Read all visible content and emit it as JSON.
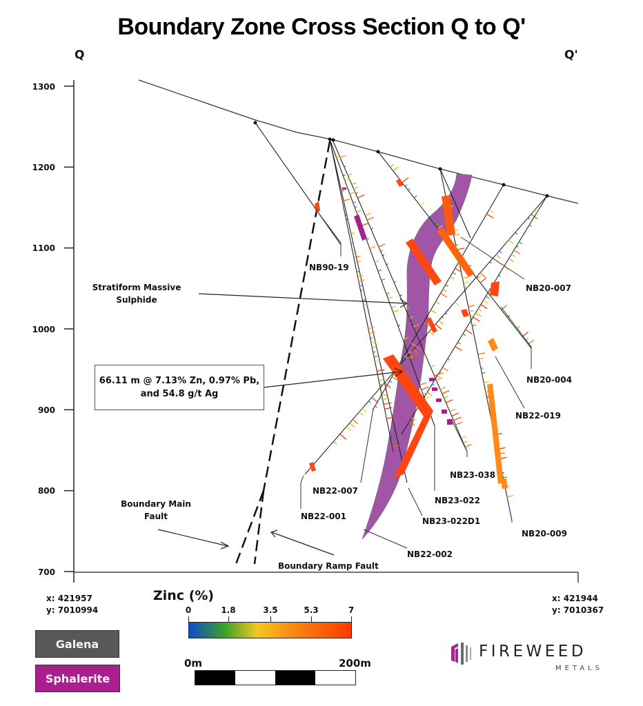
{
  "title": "Boundary Zone Cross Section Q to Q'",
  "section_ends": {
    "left": "Q",
    "right": "Q'"
  },
  "y_axis": {
    "ticks": [
      "1300",
      "1200",
      "1100",
      "1000",
      "900",
      "800",
      "700"
    ],
    "range": [
      700,
      1300
    ],
    "units": "m elevation"
  },
  "coordinates": {
    "left": {
      "x": "x: 421957",
      "y": "y: 7010994"
    },
    "right": {
      "x": "x: 421944",
      "y": "y: 7010367"
    }
  },
  "drillholes": [
    {
      "id": "NB90-19"
    },
    {
      "id": "NB20-007"
    },
    {
      "id": "NB20-004"
    },
    {
      "id": "NB22-019"
    },
    {
      "id": "NB23-038"
    },
    {
      "id": "NB22-007"
    },
    {
      "id": "NB23-022"
    },
    {
      "id": "NB22-001"
    },
    {
      "id": "NB23-022D1"
    },
    {
      "id": "NB20-009"
    },
    {
      "id": "NB22-002"
    }
  ],
  "annotations": {
    "stratiform_line1": "Stratiform Massive",
    "stratiform_line2": "Sulphide",
    "main_fault_line1": "Boundary Main",
    "main_fault_line2": "Fault",
    "ramp_fault": "Boundary Ramp Fault",
    "intercept_line1": "66.11 m @ 7.13% Zn, 0.97% Pb,",
    "intercept_line2": "and 54.8 g/t Ag"
  },
  "legend": {
    "galena": {
      "label": "Galena",
      "color": "#58585a"
    },
    "sphalerite": {
      "label": "Sphalerite",
      "color": "#a91f8e"
    }
  },
  "zinc_scale": {
    "title": "Zinc (%)",
    "ticks": [
      "0",
      "1.8",
      "3.5",
      "5.3",
      "7"
    ],
    "min": 0,
    "max": 7,
    "colors": [
      "#1149c9",
      "#3aa226",
      "#f5c623",
      "#f77f10",
      "#ff3b00"
    ]
  },
  "scale_bar": {
    "start": "0m",
    "end": "200m"
  },
  "logo": {
    "name": "FIREWEED",
    "sub": "METALS",
    "accent": "#a3268f"
  },
  "colors": {
    "massive_sulphide": "#a155a6",
    "high_grade": "#ff4510",
    "orange": "#ff8a1c"
  }
}
